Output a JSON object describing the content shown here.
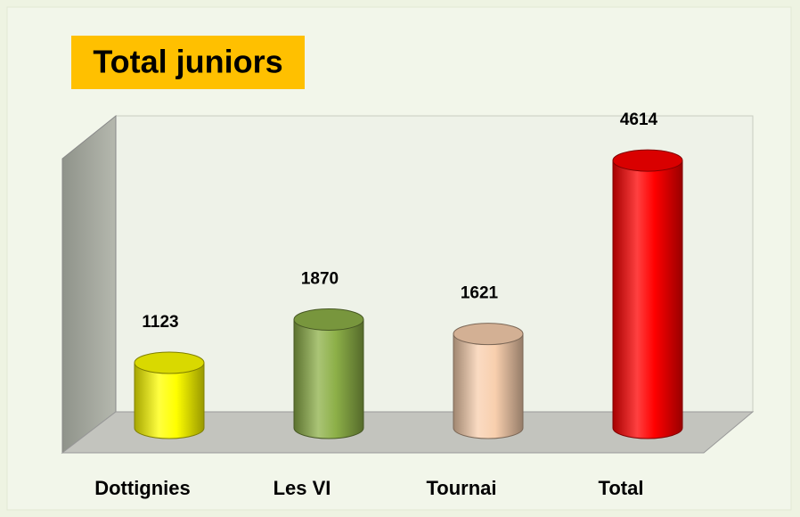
{
  "chart_data": {
    "type": "cylinder",
    "title": "Total juniors",
    "categories": [
      "Dottignies",
      "Les VI",
      "Tournai",
      "Total"
    ],
    "values": [
      1123,
      1870,
      1621,
      4614
    ],
    "colors": [
      "#ffff00",
      "#8db048",
      "#f8cfae",
      "#ff0000"
    ],
    "ylim": [
      0,
      5000
    ]
  }
}
